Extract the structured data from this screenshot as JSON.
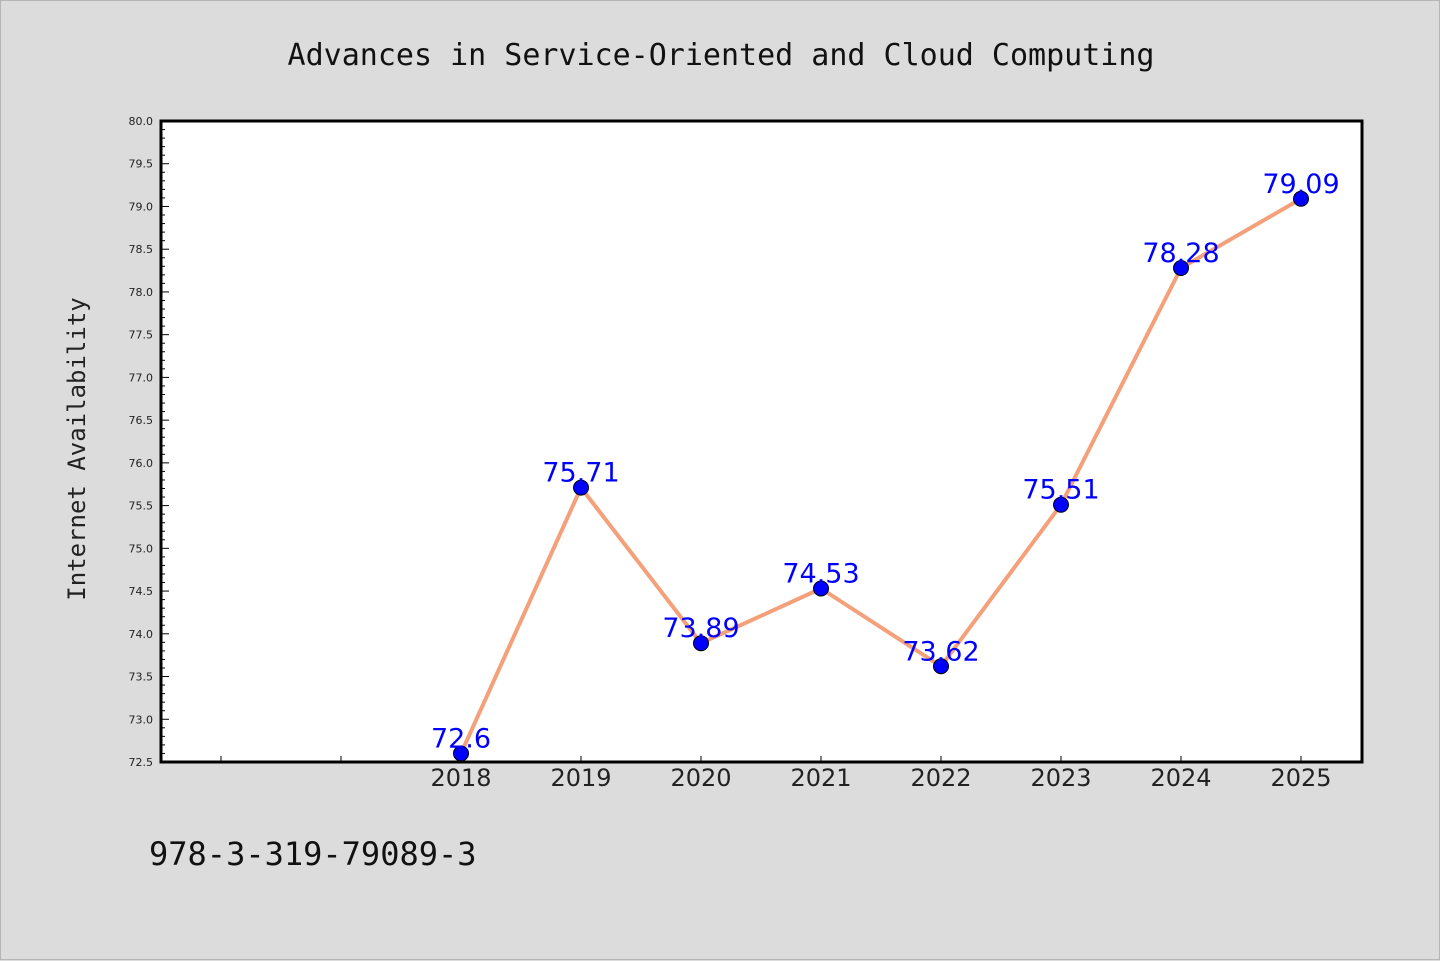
{
  "chart_data": {
    "type": "line",
    "title": "Advances in Service-Oriented and Cloud Computing",
    "xlabel": "",
    "ylabel": "Internet Availability",
    "x": [
      "2018",
      "2019",
      "2020",
      "2021",
      "2022",
      "2023",
      "2024",
      "2025"
    ],
    "series": [
      {
        "values": [
          72.6,
          75.71,
          73.89,
          74.53,
          73.62,
          75.51,
          78.28,
          79.09
        ],
        "labels": [
          "72.6",
          "75.71",
          "73.89",
          "74.53",
          "73.62",
          "75.51",
          "78.28",
          "79.09"
        ],
        "line_color": "#f4a07a",
        "marker_color": "#0000ff"
      }
    ],
    "ylim": [
      72.5,
      80.0
    ],
    "yticks": [
      "72.5",
      "73.0",
      "73.5",
      "74.0",
      "74.5",
      "75.0",
      "75.5",
      "76.0",
      "76.5",
      "77.0",
      "77.5",
      "78.0",
      "78.5",
      "79.0",
      "79.5",
      "80.0"
    ],
    "grid": false,
    "legend": "none"
  },
  "footer": {
    "isbn": "978-3-319-79089-3"
  }
}
